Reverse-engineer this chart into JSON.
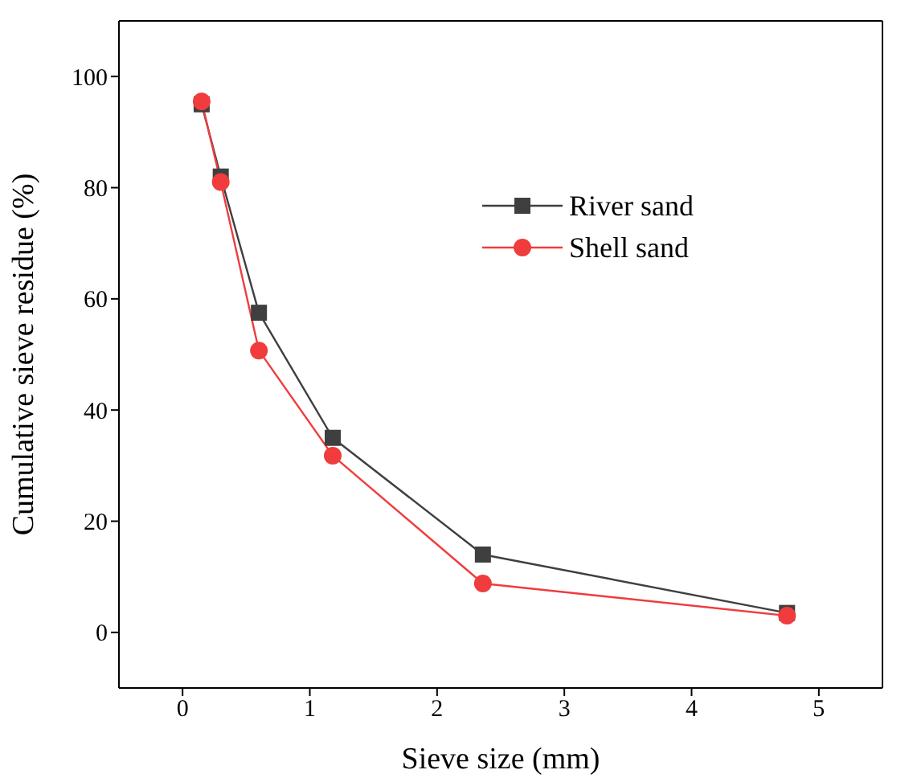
{
  "chart_data": {
    "type": "line",
    "xlabel": "Sieve size (mm)",
    "ylabel": "Cumulative sieve residue (%)",
    "xlim": [
      -0.5,
      5.5
    ],
    "xticks": [
      0,
      1,
      2,
      3,
      4,
      5
    ],
    "ylim": [
      -10,
      110
    ],
    "yticks": [
      0,
      20,
      40,
      60,
      80,
      100
    ],
    "legend": "right",
    "line_style": "solid",
    "series": [
      {
        "name": "River sand",
        "color": "#3f3f3f",
        "marker": "square",
        "x": [
          0.15,
          0.3,
          0.6,
          1.18,
          2.36,
          4.75
        ],
        "values": [
          95,
          82,
          57.5,
          35,
          14,
          3.5
        ]
      },
      {
        "name": "Shell sand",
        "color": "#f03c3c",
        "marker": "circle",
        "x": [
          0.15,
          0.3,
          0.6,
          1.18,
          2.36,
          4.75
        ],
        "values": [
          95.5,
          81,
          50.7,
          31.8,
          8.8,
          3
        ]
      }
    ]
  }
}
